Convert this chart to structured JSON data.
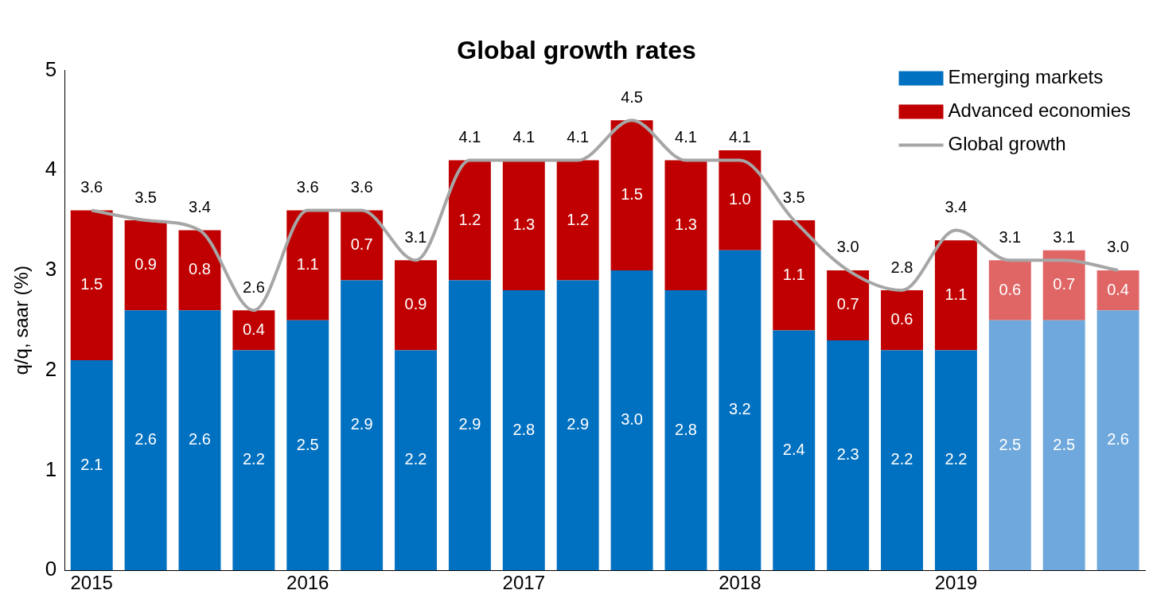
{
  "chart_data": {
    "type": "bar",
    "title": "Global growth rates",
    "ylabel": "q/q, saar (%)",
    "categories": [
      "2015",
      null,
      null,
      null,
      "2016",
      null,
      null,
      null,
      "2017",
      null,
      null,
      null,
      "2018",
      null,
      null,
      null,
      "2019",
      null,
      null,
      null
    ],
    "stacked": true,
    "series": [
      {
        "name": "Emerging markets",
        "color": "#0070c0",
        "colors": [
          "#0070c0",
          "#0070c0",
          "#0070c0",
          "#0070c0",
          "#0070c0",
          "#0070c0",
          "#0070c0",
          "#0070c0",
          "#0070c0",
          "#0070c0",
          "#0070c0",
          "#0070c0",
          "#0070c0",
          "#0070c0",
          "#0070c0",
          "#0070c0",
          "#0070c0",
          "#6fa8dc",
          "#6fa8dc",
          "#6fa8dc"
        ],
        "values": [
          2.1,
          2.6,
          2.6,
          2.2,
          2.5,
          2.9,
          2.2,
          2.9,
          2.8,
          2.9,
          3,
          2.8,
          3.2,
          2.4,
          2.3,
          2.2,
          2.2,
          2.5,
          2.5,
          2.6
        ],
        "value_labels": [
          "2.1",
          "2.6",
          "2.6",
          "2.2",
          "2.5",
          "2.9",
          "2.2",
          "2.9",
          "2.8",
          "2.9",
          "3.0",
          "2.8",
          "3.2",
          "2.4",
          "2.3",
          "2.2",
          "2.2",
          "2.5",
          "2.5",
          "2.6"
        ]
      },
      {
        "name": "Advanced economies",
        "color": "#c00000",
        "colors": [
          "#c00000",
          "#c00000",
          "#c00000",
          "#c00000",
          "#c00000",
          "#c00000",
          "#c00000",
          "#c00000",
          "#c00000",
          "#c00000",
          "#c00000",
          "#c00000",
          "#c00000",
          "#c00000",
          "#c00000",
          "#c00000",
          "#c00000",
          "#e06666",
          "#e06666",
          "#e06666"
        ],
        "values": [
          1.5,
          0.9,
          0.8,
          0.4,
          1.1,
          0.7,
          0.9,
          1.2,
          1.3,
          1.2,
          1.5,
          1.3,
          1,
          1.1,
          0.7,
          0.6,
          1.1,
          0.6,
          0.7,
          0.4
        ],
        "value_labels": [
          "1.5",
          "0.9",
          "0.8",
          "0.4",
          "1.1",
          "0.7",
          "0.9",
          "1.2",
          "1.3",
          "1.2",
          "1.5",
          "1.3",
          "1.0",
          "1.1",
          "0.7",
          "0.6",
          "1.1",
          "0.6",
          "0.7",
          "0.4"
        ]
      },
      {
        "name": "Global growth",
        "type": "line",
        "color": "#a6a6a6",
        "values": [
          3.6,
          3.5,
          3.4,
          2.6,
          3.6,
          3.6,
          3.1,
          4.1,
          4.1,
          4.1,
          4.5,
          4.1,
          4.1,
          3.5,
          3,
          2.8,
          3.4,
          3.1,
          3.1,
          3
        ],
        "value_labels": [
          "3.6",
          "3.5",
          "3.4",
          "2.6",
          "3.6",
          "3.6",
          "3.1",
          "4.1",
          "4.1",
          "4.1",
          "4.5",
          "4.1",
          "4.1",
          "3.5",
          "3.0",
          "2.8",
          "3.4",
          "3.1",
          "3.1",
          "3.0"
        ]
      }
    ],
    "ylim": [
      0,
      5
    ],
    "yticks": [
      0,
      1,
      2,
      3,
      4,
      5
    ],
    "grid": false,
    "legend": "top right",
    "marker": "none",
    "line_style": "solid"
  }
}
